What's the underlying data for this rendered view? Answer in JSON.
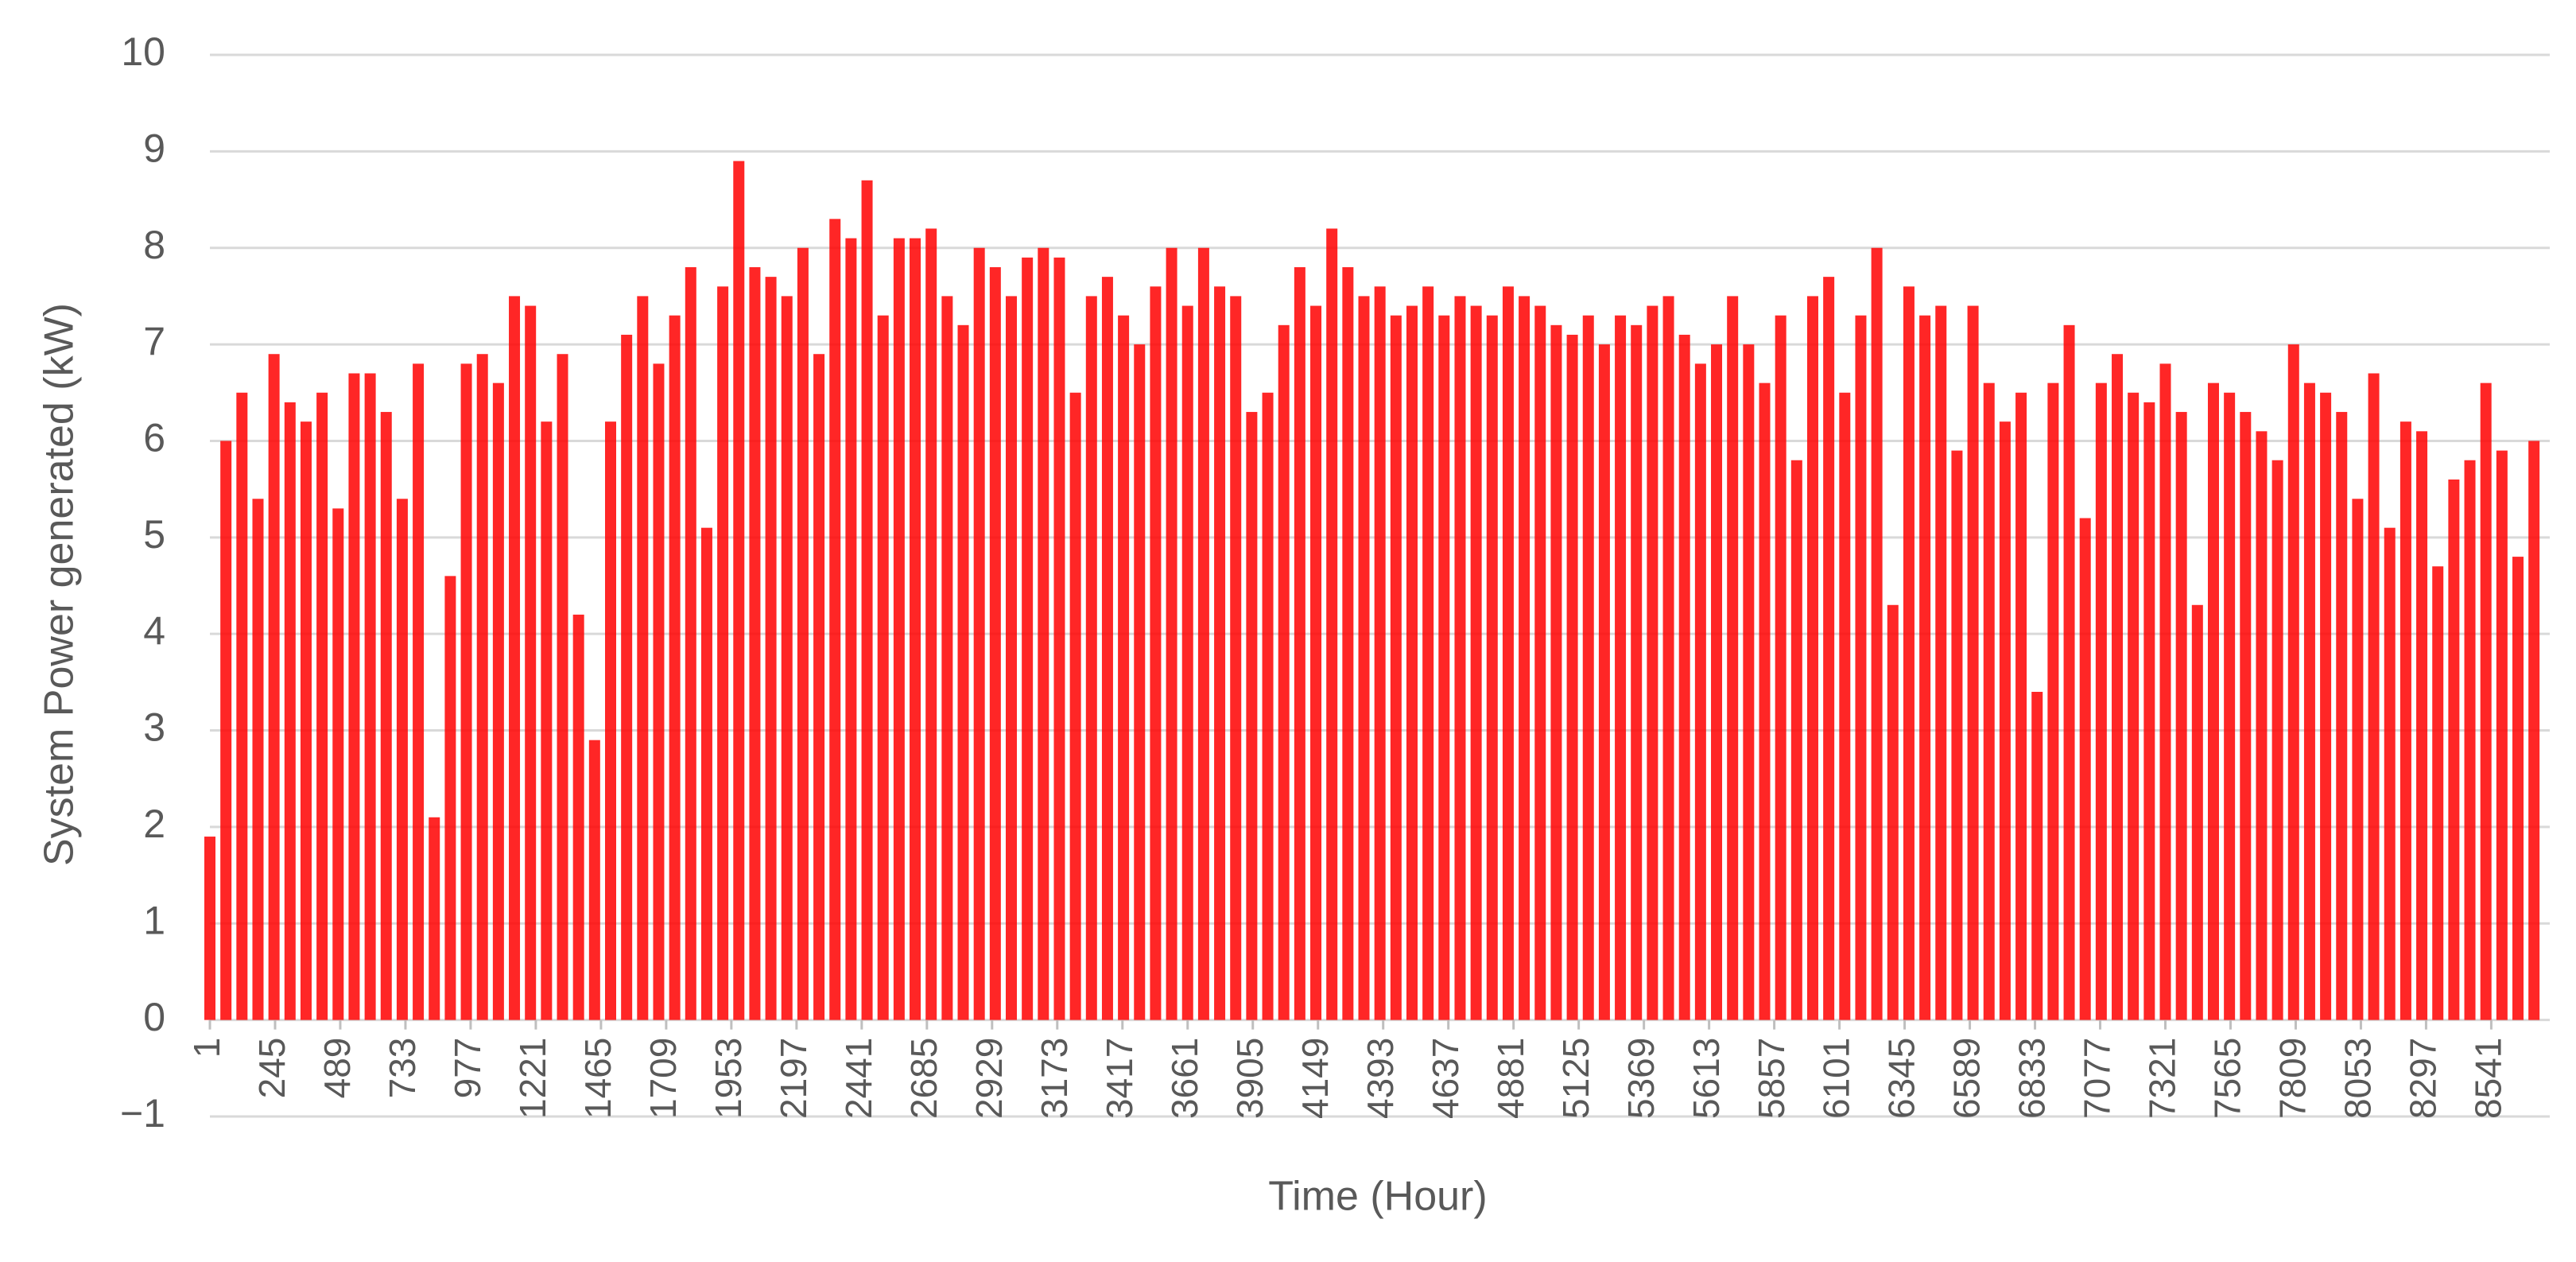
{
  "chart_data": {
    "type": "bar",
    "x_label": "Time (Hour)",
    "y_label": "System Power generated (kW)",
    "color": "#ff0000",
    "grid": true,
    "xlim": [
      1,
      8760
    ],
    "ylim": [
      -1,
      10
    ],
    "yticks": [
      {
        "value": -1,
        "label": "−1"
      },
      0,
      1,
      2,
      3,
      4,
      5,
      6,
      7,
      8,
      9,
      10
    ],
    "xticks": [
      1,
      245,
      489,
      733,
      977,
      1221,
      1465,
      1709,
      1953,
      2197,
      2441,
      2685,
      2929,
      3173,
      3417,
      3661,
      3905,
      4149,
      4393,
      4637,
      4881,
      5125,
      5369,
      5613,
      5857,
      6101,
      6345,
      6589,
      6833,
      7077,
      7321,
      7565,
      7809,
      8053,
      8297,
      8541
    ],
    "x": [
      1,
      61,
      121,
      181,
      241,
      301,
      361,
      421,
      481,
      541,
      601,
      661,
      721,
      781,
      841,
      901,
      961,
      1021,
      1081,
      1141,
      1201,
      1261,
      1321,
      1381,
      1441,
      1501,
      1561,
      1621,
      1681,
      1741,
      1801,
      1861,
      1921,
      1981,
      2041,
      2101,
      2161,
      2221,
      2281,
      2341,
      2401,
      2461,
      2521,
      2581,
      2641,
      2701,
      2761,
      2821,
      2881,
      2941,
      3001,
      3061,
      3121,
      3181,
      3241,
      3301,
      3361,
      3421,
      3481,
      3541,
      3601,
      3661,
      3721,
      3781,
      3841,
      3901,
      3961,
      4021,
      4081,
      4141,
      4201,
      4261,
      4321,
      4381,
      4441,
      4501,
      4561,
      4621,
      4681,
      4741,
      4801,
      4861,
      4921,
      4981,
      5041,
      5101,
      5161,
      5221,
      5281,
      5341,
      5401,
      5461,
      5521,
      5581,
      5641,
      5701,
      5761,
      5821,
      5881,
      5941,
      6001,
      6061,
      6121,
      6181,
      6241,
      6301,
      6361,
      6421,
      6481,
      6541,
      6601,
      6661,
      6721,
      6781,
      6841,
      6901,
      6961,
      7021,
      7081,
      7141,
      7201,
      7261,
      7321,
      7381,
      7441,
      7501,
      7561,
      7621,
      7681,
      7741,
      7801,
      7861,
      7921,
      7981,
      8041,
      8101,
      8161,
      8221,
      8281,
      8341,
      8401,
      8461,
      8521,
      8581,
      8641,
      8701
    ],
    "values": [
      1.9,
      6.0,
      6.5,
      5.4,
      6.9,
      6.4,
      6.2,
      6.5,
      5.3,
      6.7,
      6.7,
      6.3,
      5.4,
      6.8,
      2.1,
      4.6,
      6.8,
      6.9,
      6.6,
      7.5,
      7.4,
      6.2,
      6.9,
      4.2,
      2.9,
      6.2,
      7.1,
      7.5,
      6.8,
      7.3,
      7.8,
      5.1,
      7.6,
      8.9,
      7.8,
      7.7,
      7.5,
      8.0,
      6.9,
      8.3,
      8.1,
      8.7,
      7.3,
      8.1,
      8.1,
      8.2,
      7.5,
      7.2,
      8.0,
      7.8,
      7.5,
      7.9,
      8.0,
      7.9,
      6.5,
      7.5,
      7.7,
      7.3,
      7.0,
      7.6,
      8.0,
      7.4,
      8.0,
      7.6,
      7.5,
      6.3,
      6.5,
      7.2,
      7.8,
      7.4,
      8.2,
      7.8,
      7.5,
      7.6,
      7.3,
      7.4,
      7.6,
      7.3,
      7.5,
      7.4,
      7.3,
      7.6,
      7.5,
      7.4,
      7.2,
      7.1,
      7.3,
      7.0,
      7.3,
      7.2,
      7.4,
      7.5,
      7.1,
      6.8,
      7.0,
      7.5,
      7.0,
      6.6,
      7.3,
      5.8,
      7.5,
      7.7,
      6.5,
      7.3,
      8.0,
      4.3,
      7.6,
      7.3,
      7.4,
      5.9,
      7.4,
      6.6,
      6.2,
      6.5,
      3.4,
      6.6,
      7.2,
      5.2,
      6.6,
      6.9,
      6.5,
      6.4,
      6.8,
      6.3,
      4.3,
      6.6,
      6.5,
      6.3,
      6.1,
      5.8,
      7.0,
      6.6,
      6.5,
      6.3,
      5.4,
      6.7,
      5.1,
      6.2,
      6.1,
      4.7,
      5.6,
      5.8,
      6.6,
      5.9,
      4.8,
      6.0
    ]
  }
}
